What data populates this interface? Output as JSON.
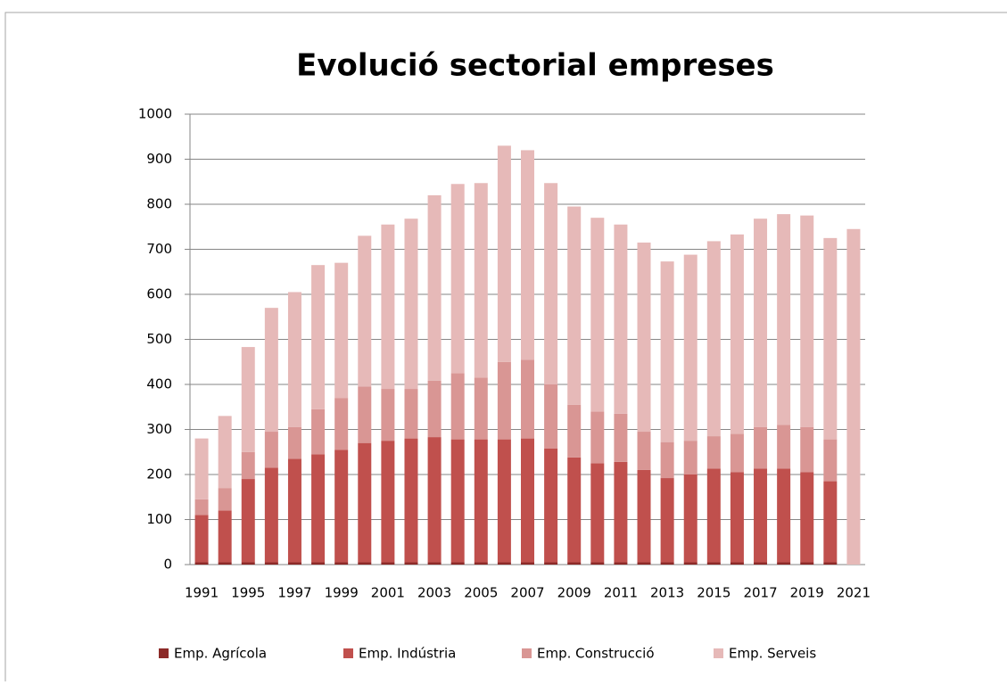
{
  "chart_data": {
    "type": "stacked_bar",
    "title": "Evolució sectorial empreses",
    "categories": [
      "1991",
      null,
      "1995",
      null,
      "1997",
      null,
      "1999",
      null,
      "2001",
      null,
      "2003",
      null,
      "2005",
      null,
      "2007",
      null,
      "2009",
      null,
      "2011",
      null,
      "2013",
      null,
      "2015",
      null,
      "2017",
      null,
      "2019",
      null,
      "2021"
    ],
    "series": [
      {
        "name": "Emp. Agrícola",
        "color": "#8c2a28",
        "values": [
          5,
          5,
          5,
          5,
          5,
          5,
          5,
          5,
          5,
          5,
          5,
          5,
          5,
          5,
          5,
          5,
          5,
          5,
          5,
          5,
          5,
          5,
          5,
          5,
          5,
          5,
          5,
          5,
          0
        ]
      },
      {
        "name": "Emp. Indústria",
        "color": "#c0504d",
        "values": [
          105,
          115,
          185,
          210,
          230,
          240,
          250,
          265,
          270,
          275,
          278,
          273,
          273,
          273,
          275,
          253,
          233,
          220,
          223,
          205,
          187,
          195,
          208,
          200,
          208,
          208,
          200,
          180,
          0
        ]
      },
      {
        "name": "Emp. Construcció",
        "color": "#d99694",
        "values": [
          35,
          50,
          60,
          80,
          70,
          100,
          115,
          125,
          115,
          110,
          125,
          147,
          137,
          172,
          175,
          142,
          117,
          115,
          107,
          85,
          80,
          75,
          72,
          85,
          92,
          97,
          100,
          93,
          0
        ]
      },
      {
        "name": "Emp. Serveis",
        "color": "#e6b9b8",
        "values": [
          135,
          160,
          233,
          275,
          300,
          320,
          300,
          335,
          365,
          378,
          412,
          420,
          432,
          480,
          465,
          447,
          440,
          430,
          420,
          420,
          401,
          413,
          433,
          443,
          463,
          468,
          470,
          447,
          745
        ]
      }
    ],
    "ylim": [
      0,
      1000
    ],
    "yticks": [
      0,
      100,
      200,
      300,
      400,
      500,
      600,
      700,
      800,
      900,
      1000
    ],
    "grid": true,
    "legend": "bottom"
  }
}
